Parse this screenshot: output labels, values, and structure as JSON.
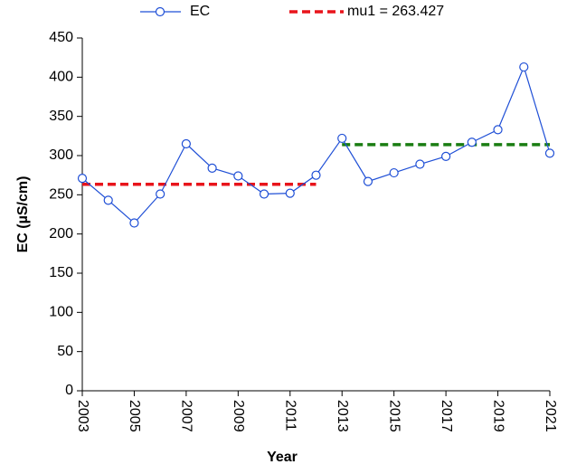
{
  "chart_data": {
    "type": "line",
    "x_label": "Year",
    "y_label": "EC (µS/cm)",
    "x": [
      2003,
      2004,
      2005,
      2006,
      2007,
      2008,
      2009,
      2010,
      2011,
      2012,
      2013,
      2014,
      2015,
      2016,
      2017,
      2018,
      2019,
      2020,
      2021
    ],
    "series": [
      {
        "name": "EC",
        "color": "#1f4fd6",
        "values": [
          271,
          243,
          214,
          251,
          315,
          284,
          274,
          251,
          252,
          275,
          322,
          267,
          278,
          289,
          299,
          317,
          333,
          413,
          303
        ]
      }
    ],
    "mean_lines": [
      {
        "name": "mu1 = 263.427",
        "value": 263.427,
        "x": [
          2003,
          2012
        ],
        "color": "#e8141b"
      },
      {
        "value": 314,
        "x": [
          2013,
          2021
        ],
        "color": "#1a7d12"
      }
    ],
    "xlim": [
      2003,
      2021
    ],
    "xticks": [
      2003,
      2005,
      2007,
      2009,
      2011,
      2013,
      2015,
      2017,
      2019,
      2021
    ],
    "ylim": [
      0,
      450
    ],
    "yticks": [
      0,
      50,
      100,
      150,
      200,
      250,
      300,
      350,
      400,
      450
    ],
    "grid": false
  }
}
